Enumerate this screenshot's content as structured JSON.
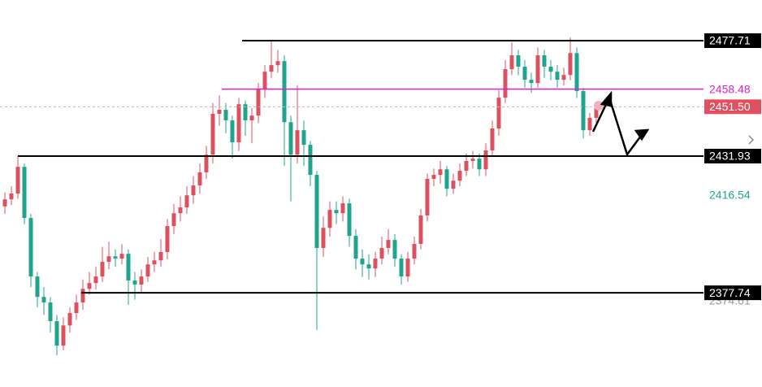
{
  "chart_data": {
    "type": "candlestick",
    "up_color": "#dd5060",
    "down_color": "#1fa58c",
    "ylim": [
      2342.0,
      2493.83
    ],
    "open": [
      2412.0,
      2414.8,
      2417.1,
      2427.7,
      2407.4,
      2384.2,
      2376.1,
      2373.9,
      2366.5,
      2356.8,
      2364.8,
      2369.7,
      2373.9,
      2379.3,
      2381.6,
      2384.2,
      2390.0,
      2392.2,
      2391.3,
      2393.2,
      2382.6,
      2381.0,
      2384.2,
      2389.0,
      2390.6,
      2393.9,
      2404.2,
      2409.3,
      2411.6,
      2416.4,
      2420.3,
      2425.5,
      2432.5,
      2448.7,
      2450.3,
      2446.1,
      2437.4,
      2452.5,
      2446.1,
      2448.0,
      2458.3,
      2465.4,
      2468.0,
      2469.6,
      2445.4,
      2432.5,
      2442.2,
      2436.4,
      2424.5,
      2395.5,
      2403.5,
      2410.6,
      2409.3,
      2413.2,
      2400.3,
      2391.3,
      2389.0,
      2387.4,
      2391.3,
      2395.5,
      2398.7,
      2391.3,
      2384.2,
      2391.3,
      2397.1,
      2408.4,
      2422.9,
      2424.5,
      2426.7,
      2419.0,
      2422.2,
      2426.1,
      2430.0,
      2430.9,
      2426.7,
      2434.2,
      2442.9,
      2455.1,
      2466.4,
      2471.9,
      2467.4,
      2462.2,
      2460.9,
      2471.9,
      2467.4,
      2465.4,
      2462.2,
      2464.1,
      2472.8,
      2457.7,
      2442.2,
      2447.1
    ],
    "high": [
      2417.5,
      2420.0,
      2431.9,
      2429.0,
      2409.0,
      2386.0,
      2380.0,
      2376.0,
      2369.0,
      2368.0,
      2372.0,
      2377.0,
      2383.0,
      2386.0,
      2388.0,
      2396.0,
      2398.0,
      2395.0,
      2397.0,
      2395.0,
      2386.0,
      2387.0,
      2392.0,
      2394.0,
      2399.0,
      2407.0,
      2413.0,
      2416.0,
      2420.0,
      2424.0,
      2429.0,
      2436.0,
      2453.0,
      2456.0,
      2453.0,
      2448.0,
      2455.0,
      2454.0,
      2451.0,
      2461.0,
      2468.0,
      2477.7,
      2474.0,
      2472.0,
      2448.0,
      2460.0,
      2446.0,
      2438.0,
      2426.0,
      2408.0,
      2414.0,
      2414.0,
      2416.0,
      2415.0,
      2403.0,
      2395.0,
      2393.0,
      2394.0,
      2400.0,
      2403.0,
      2401.0,
      2393.0,
      2394.0,
      2400.0,
      2411.0,
      2425.0,
      2427.0,
      2430.0,
      2428.0,
      2425.0,
      2429.0,
      2433.0,
      2434.0,
      2433.0,
      2437.0,
      2446.0,
      2458.0,
      2470.0,
      2477.0,
      2474.0,
      2470.0,
      2465.0,
      2475.0,
      2474.0,
      2470.0,
      2468.0,
      2467.0,
      2479.0,
      2475.0,
      2459.0,
      2449.0,
      2453.0
    ],
    "low": [
      2409.0,
      2412.5,
      2415.0,
      2405.0,
      2380.0,
      2372.0,
      2369.0,
      2362.0,
      2353.0,
      2355.0,
      2362.0,
      2367.0,
      2371.0,
      2377.0,
      2379.0,
      2382.0,
      2387.0,
      2388.0,
      2389.0,
      2373.0,
      2375.0,
      2378.0,
      2382.0,
      2386.0,
      2388.0,
      2391.0,
      2401.0,
      2406.0,
      2409.0,
      2413.0,
      2417.0,
      2423.0,
      2429.0,
      2444.0,
      2441.0,
      2431.0,
      2434.0,
      2440.0,
      2437.0,
      2445.0,
      2455.0,
      2463.0,
      2465.0,
      2428.0,
      2414.0,
      2429.0,
      2428.0,
      2420.0,
      2363.0,
      2392.0,
      2400.0,
      2405.0,
      2406.0,
      2396.0,
      2387.0,
      2384.0,
      2383.0,
      2384.0,
      2389.0,
      2393.0,
      2388.0,
      2381.0,
      2382.0,
      2389.0,
      2395.0,
      2406.0,
      2420.0,
      2421.0,
      2416.0,
      2417.0,
      2420.0,
      2424.0,
      2427.0,
      2424.0,
      2424.0,
      2432.0,
      2440.0,
      2453.0,
      2464.0,
      2464.0,
      2459.0,
      2457.0,
      2459.0,
      2463.0,
      2462.0,
      2459.0,
      2460.0,
      2462.0,
      2455.0,
      2439.0,
      2440.0,
      2445.0
    ],
    "close": [
      2414.8,
      2417.1,
      2427.7,
      2407.4,
      2384.2,
      2376.1,
      2373.9,
      2366.5,
      2356.8,
      2364.8,
      2369.7,
      2373.9,
      2379.3,
      2381.6,
      2384.2,
      2390.0,
      2392.2,
      2391.3,
      2393.2,
      2382.6,
      2381.0,
      2384.2,
      2389.0,
      2390.6,
      2393.9,
      2404.2,
      2409.3,
      2411.6,
      2416.4,
      2420.3,
      2425.5,
      2432.5,
      2448.7,
      2450.3,
      2446.1,
      2437.4,
      2452.5,
      2446.1,
      2448.0,
      2458.3,
      2465.4,
      2468.0,
      2469.6,
      2445.4,
      2432.5,
      2442.2,
      2436.4,
      2424.5,
      2395.5,
      2403.5,
      2410.6,
      2409.3,
      2413.2,
      2400.3,
      2391.3,
      2389.0,
      2387.4,
      2391.3,
      2395.5,
      2398.7,
      2391.3,
      2384.2,
      2391.3,
      2397.1,
      2408.4,
      2422.9,
      2424.5,
      2426.7,
      2419.0,
      2422.2,
      2426.1,
      2430.0,
      2430.9,
      2426.7,
      2434.2,
      2442.9,
      2455.1,
      2466.4,
      2471.9,
      2467.4,
      2462.2,
      2460.9,
      2471.9,
      2467.4,
      2465.4,
      2462.2,
      2464.1,
      2472.8,
      2457.7,
      2442.2,
      2447.1,
      2451.5
    ],
    "levels": [
      {
        "value": 2374.61,
        "line": "none",
        "text_color": "#9a9a9a"
      },
      {
        "value": 2416.54,
        "line": "none",
        "text_color": "#1fa58c"
      },
      {
        "value": 2477.71,
        "line": "solid",
        "line_color": "#000000",
        "label_bg": "#000000",
        "text_color": "#ffffff"
      },
      {
        "value": 2458.48,
        "line": "solid",
        "line_color": "#e020d0",
        "text_color": "#e020d0"
      },
      {
        "value": 2451.5,
        "label": "2451.50",
        "line": "dashed",
        "line_color": "#bbbbbb",
        "label_bg": "#e0505f",
        "text_color": "#ffffff"
      },
      {
        "value": 2431.93,
        "line": "solid",
        "line_color": "#000000",
        "label_bg": "#000000",
        "text_color": "#ffffff"
      },
      {
        "value": 2377.74,
        "line": "solid",
        "line_color": "#000000",
        "label_bg": "#000000",
        "text_color": "#ffffff"
      }
    ]
  }
}
